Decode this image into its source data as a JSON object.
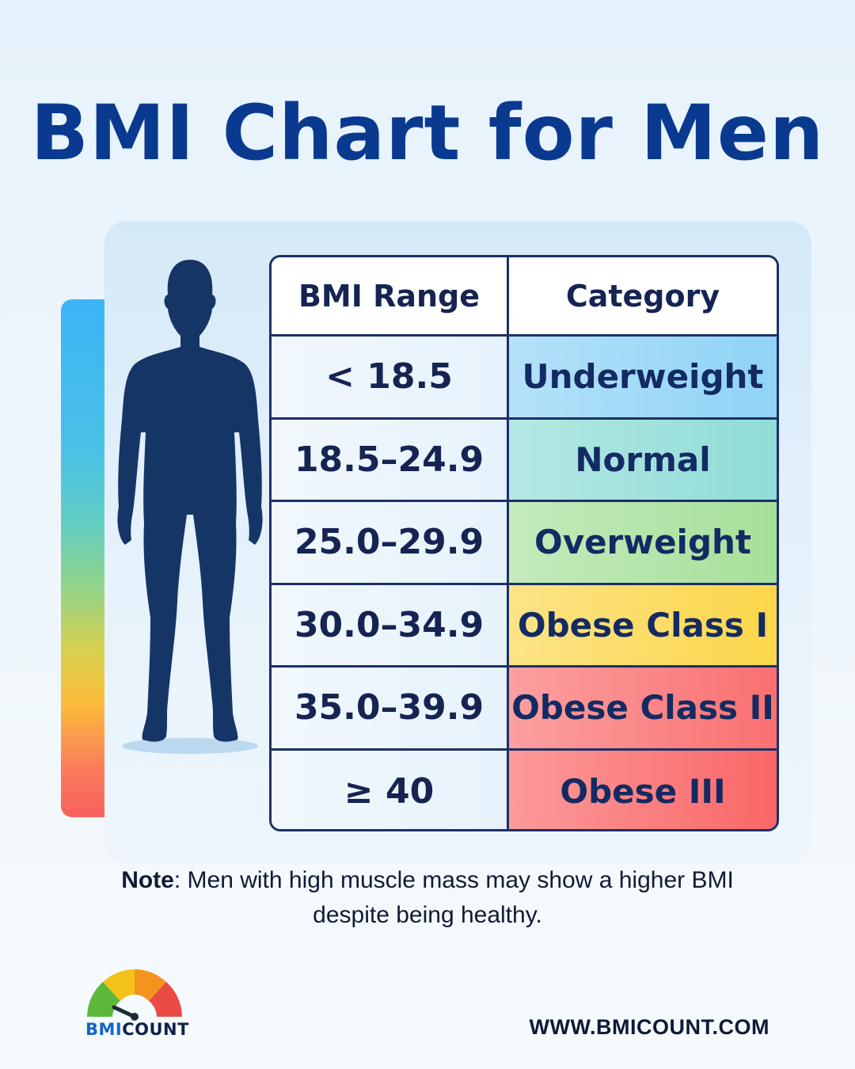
{
  "title": "BMI Chart for Men",
  "table": {
    "headers": [
      "BMI Range",
      "Category"
    ],
    "rows": [
      {
        "range": "< 18.5",
        "category": "Underweight",
        "color": "#8fd3f6"
      },
      {
        "range": "18.5–24.9",
        "category": "Normal",
        "color": "#8fdcd6"
      },
      {
        "range": "25.0–29.9",
        "category": "Overweight",
        "color": "#a6e09a"
      },
      {
        "range": "30.0–34.9",
        "category": "Obese Class I",
        "color": "#fbd64a"
      },
      {
        "range": "35.0–39.9",
        "category": "Obese Class II",
        "color": "#fa7070"
      },
      {
        "range": "≥ 40",
        "category": "Obese III",
        "color": "#fa6767"
      }
    ]
  },
  "note": {
    "label": "Note",
    "text": ": Men with high muscle mass may show a higher BMI despite being healthy."
  },
  "logo": {
    "part1": "BMI",
    "part2": "COUNT"
  },
  "url": "WWW.BMICOUNT.COM",
  "colors": {
    "title": "#0a3a8f",
    "border": "#1e2f66",
    "silhouette": "#163567"
  }
}
